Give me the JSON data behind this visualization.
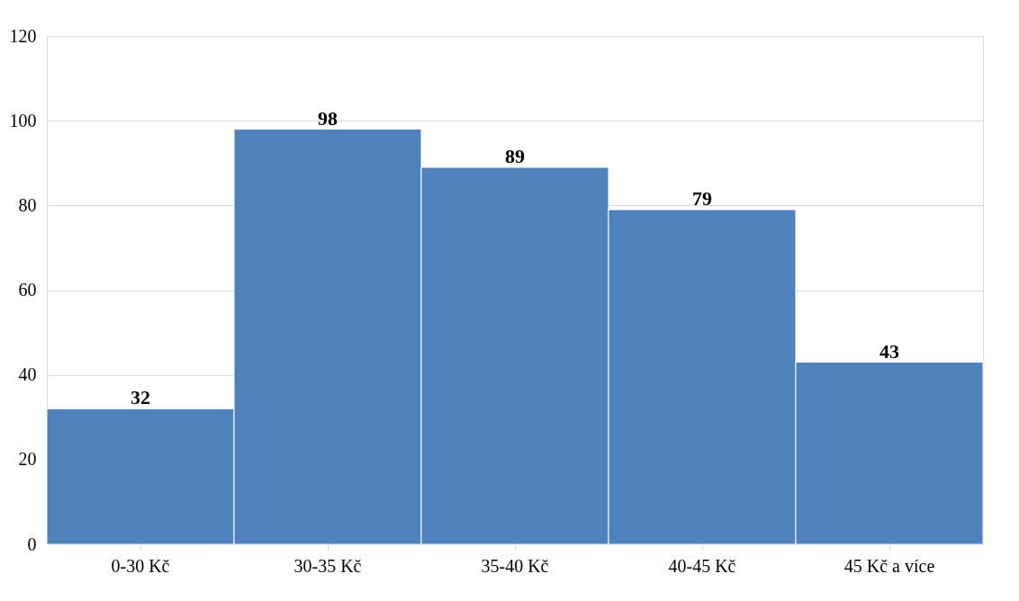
{
  "chart_data": {
    "type": "bar",
    "categories": [
      "0-30 Kč",
      "30-35 Kč",
      "35-40 Kč",
      "40-45 Kč",
      "45 Kč a více"
    ],
    "values": [
      32,
      98,
      89,
      79,
      43
    ],
    "color": "#4f81bd",
    "ylim": [
      0,
      120
    ],
    "yticks": [
      0,
      20,
      40,
      60,
      80,
      100,
      120
    ],
    "grid": "y",
    "data_labels": true
  }
}
